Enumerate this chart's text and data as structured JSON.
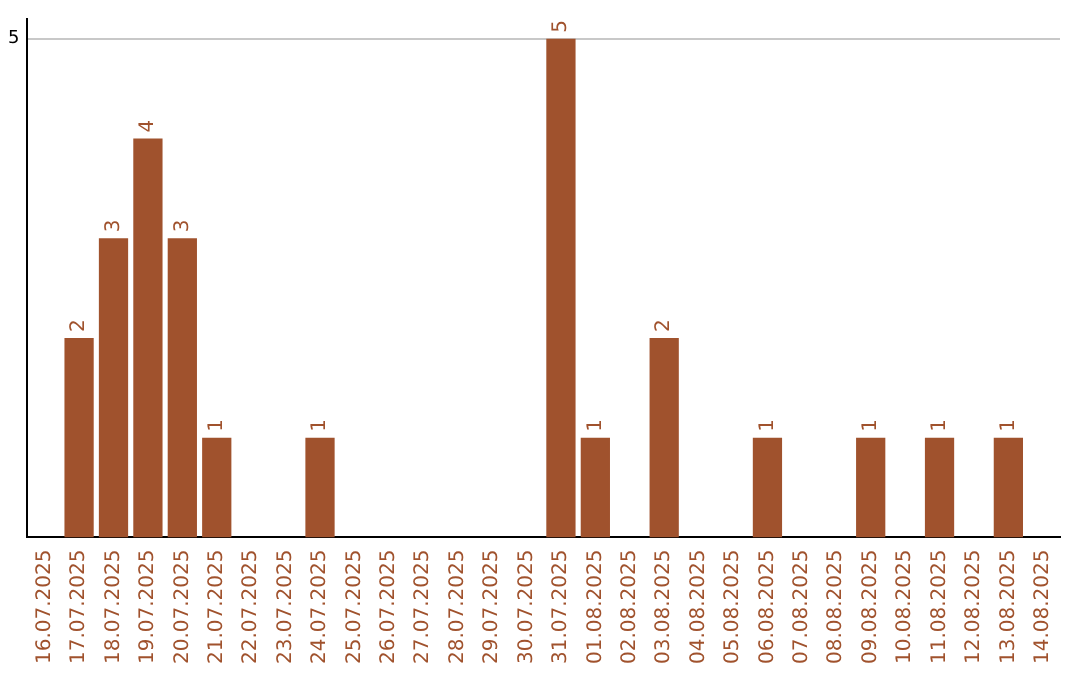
{
  "chart_data": {
    "type": "bar",
    "categories": [
      "16.07.2025",
      "17.07.2025",
      "18.07.2025",
      "19.07.2025",
      "20.07.2025",
      "21.07.2025",
      "22.07.2025",
      "23.07.2025",
      "24.07.2025",
      "25.07.2025",
      "26.07.2025",
      "27.07.2025",
      "28.07.2025",
      "29.07.2025",
      "30.07.2025",
      "31.07.2025",
      "01.08.2025",
      "02.08.2025",
      "03.08.2025",
      "04.08.2025",
      "05.08.2025",
      "06.08.2025",
      "07.08.2025",
      "08.08.2025",
      "09.08.2025",
      "10.08.2025",
      "11.08.2025",
      "12.08.2025",
      "13.08.2025",
      "14.08.2025"
    ],
    "values": [
      null,
      2,
      3,
      4,
      3,
      1,
      null,
      null,
      1,
      null,
      null,
      null,
      null,
      null,
      null,
      5,
      1,
      null,
      2,
      null,
      null,
      1,
      null,
      null,
      1,
      null,
      1,
      null,
      1,
      null
    ],
    "color": "#a0522d",
    "ylim": [
      0,
      5.2
    ],
    "yticks": [
      5
    ],
    "grid": "y",
    "data_labels": true,
    "legend": false
  }
}
